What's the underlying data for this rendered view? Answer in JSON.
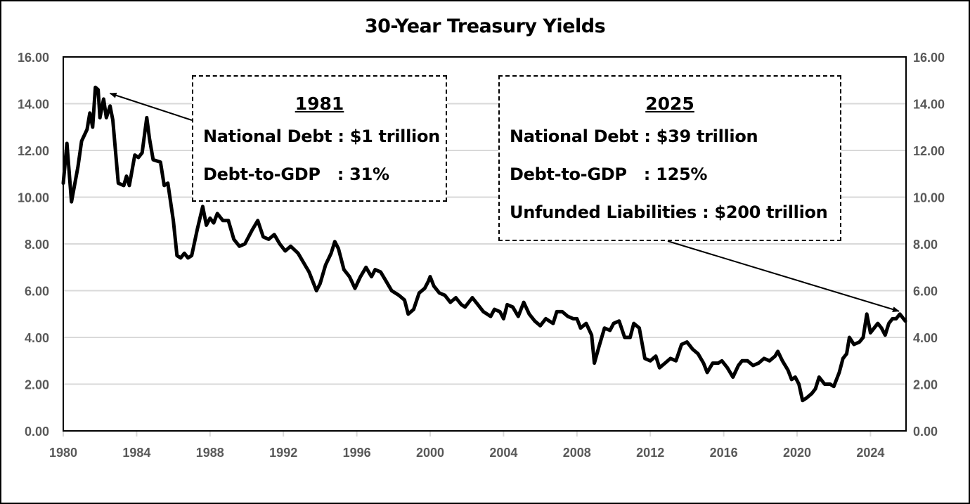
{
  "chart_data": {
    "type": "line",
    "title": "30-Year Treasury Yields",
    "xlabel": "",
    "ylabel": "",
    "xlim": [
      1980,
      2025.9
    ],
    "ylim": [
      0,
      16
    ],
    "grid": true,
    "legend": "none",
    "x_ticks": [
      "1980",
      "1984",
      "1988",
      "1992",
      "1996",
      "2000",
      "2004",
      "2008",
      "2012",
      "2016",
      "2020",
      "2024"
    ],
    "x_tick_values": [
      1980,
      1984,
      1988,
      1992,
      1996,
      2000,
      2004,
      2008,
      2012,
      2016,
      2020,
      2024
    ],
    "y_ticks_left": [
      "0.00",
      "2.00",
      "4.00",
      "6.00",
      "8.00",
      "10.00",
      "12.00",
      "14.00",
      "16.00"
    ],
    "y_ticks_right": [
      "0.00",
      "2.00",
      "4.00",
      "6.00",
      "8.00",
      "10.00",
      "12.00",
      "14.00",
      "16.00"
    ],
    "y_tick_values": [
      0,
      2,
      4,
      6,
      8,
      10,
      12,
      14,
      16
    ],
    "series": [
      {
        "name": "30-Year Treasury Yield",
        "color": "#000000",
        "x": [
          1980.0,
          1980.2,
          1980.45,
          1980.8,
          1981.0,
          1981.3,
          1981.45,
          1981.6,
          1981.75,
          1981.9,
          1982.0,
          1982.2,
          1982.35,
          1982.55,
          1982.7,
          1983.0,
          1983.3,
          1983.45,
          1983.6,
          1983.9,
          1984.1,
          1984.3,
          1984.55,
          1984.7,
          1984.9,
          1985.3,
          1985.5,
          1985.7,
          1986.0,
          1986.2,
          1986.4,
          1986.6,
          1986.8,
          1987.0,
          1987.3,
          1987.6,
          1987.8,
          1988.0,
          1988.2,
          1988.4,
          1988.7,
          1989.0,
          1989.3,
          1989.6,
          1989.9,
          1990.3,
          1990.6,
          1990.9,
          1991.2,
          1991.5,
          1991.8,
          1992.1,
          1992.4,
          1992.8,
          1993.1,
          1993.4,
          1993.8,
          1994.0,
          1994.3,
          1994.6,
          1994.8,
          1995.0,
          1995.3,
          1995.6,
          1995.9,
          1996.2,
          1996.5,
          1996.8,
          1997.0,
          1997.3,
          1997.6,
          1997.9,
          1998.3,
          1998.6,
          1998.8,
          1999.1,
          1999.4,
          1999.7,
          1999.9,
          2000.0,
          2000.2,
          2000.5,
          2000.8,
          2001.1,
          2001.4,
          2001.7,
          2001.9,
          2002.3,
          2002.6,
          2002.9,
          2003.3,
          2003.5,
          2003.8,
          2004.0,
          2004.2,
          2004.5,
          2004.8,
          2005.1,
          2005.4,
          2005.7,
          2006.0,
          2006.3,
          2006.7,
          2006.9,
          2007.2,
          2007.5,
          2007.8,
          2008.0,
          2008.2,
          2008.5,
          2008.8,
          2008.95,
          2009.2,
          2009.5,
          2009.8,
          2010.0,
          2010.3,
          2010.6,
          2010.9,
          2011.1,
          2011.4,
          2011.7,
          2012.0,
          2012.3,
          2012.5,
          2012.8,
          2013.1,
          2013.4,
          2013.7,
          2014.0,
          2014.3,
          2014.6,
          2014.9,
          2015.1,
          2015.4,
          2015.7,
          2015.9,
          2016.2,
          2016.5,
          2016.8,
          2017.0,
          2017.3,
          2017.6,
          2017.9,
          2018.2,
          2018.5,
          2018.8,
          2018.95,
          2019.2,
          2019.5,
          2019.7,
          2019.9,
          2020.1,
          2020.3,
          2020.5,
          2020.8,
          2021.0,
          2021.2,
          2021.5,
          2021.8,
          2022.0,
          2022.3,
          2022.5,
          2022.7,
          2022.85,
          2023.1,
          2023.4,
          2023.6,
          2023.8,
          2024.0,
          2024.2,
          2024.4,
          2024.6,
          2024.8,
          2025.0,
          2025.2,
          2025.4,
          2025.6,
          2025.9
        ],
        "values": [
          10.6,
          12.3,
          9.8,
          11.3,
          12.4,
          12.9,
          13.6,
          13.0,
          14.7,
          14.6,
          13.4,
          14.2,
          13.4,
          13.9,
          13.3,
          10.6,
          10.5,
          10.9,
          10.5,
          11.8,
          11.7,
          11.9,
          13.4,
          12.5,
          11.6,
          11.5,
          10.5,
          10.6,
          9.0,
          7.5,
          7.4,
          7.6,
          7.4,
          7.5,
          8.6,
          9.6,
          8.8,
          9.1,
          8.9,
          9.3,
          9.0,
          9.0,
          8.2,
          7.9,
          8.0,
          8.6,
          9.0,
          8.3,
          8.2,
          8.4,
          8.0,
          7.7,
          7.9,
          7.6,
          7.2,
          6.8,
          6.0,
          6.3,
          7.1,
          7.6,
          8.1,
          7.8,
          6.9,
          6.6,
          6.1,
          6.6,
          7.0,
          6.6,
          6.9,
          6.8,
          6.4,
          6.0,
          5.8,
          5.6,
          5.0,
          5.2,
          5.9,
          6.1,
          6.4,
          6.6,
          6.2,
          5.9,
          5.8,
          5.5,
          5.7,
          5.4,
          5.3,
          5.7,
          5.4,
          5.1,
          4.9,
          5.2,
          5.1,
          4.8,
          5.4,
          5.3,
          4.9,
          5.5,
          5.0,
          4.7,
          4.5,
          4.8,
          4.6,
          5.1,
          5.1,
          4.9,
          4.8,
          4.8,
          4.4,
          4.6,
          4.1,
          2.9,
          3.6,
          4.4,
          4.3,
          4.6,
          4.7,
          4.0,
          4.0,
          4.6,
          4.4,
          3.1,
          3.0,
          3.2,
          2.7,
          2.9,
          3.1,
          3.0,
          3.7,
          3.8,
          3.5,
          3.3,
          2.9,
          2.5,
          2.9,
          2.9,
          3.0,
          2.7,
          2.3,
          2.8,
          3.0,
          3.0,
          2.8,
          2.9,
          3.1,
          3.0,
          3.2,
          3.4,
          3.0,
          2.6,
          2.2,
          2.3,
          2.0,
          1.3,
          1.4,
          1.6,
          1.8,
          2.3,
          2.0,
          2.0,
          1.9,
          2.5,
          3.1,
          3.3,
          4.0,
          3.7,
          3.8,
          4.0,
          5.0,
          4.2,
          4.4,
          4.6,
          4.4,
          4.1,
          4.6,
          4.8,
          4.8,
          5.0,
          4.7
        ]
      }
    ],
    "annotations": [
      {
        "year_label": "1981",
        "lines": [
          "National Debt : $1 trillion",
          "Debt-to-GDP   : 31%"
        ],
        "arrow_target": {
          "x": 1982.4,
          "y": 14.5
        }
      },
      {
        "year_label": "2025",
        "lines": [
          "National Debt : $39 trillion",
          "Debt-to-GDP   : 125%",
          "Unfunded Liabilities : $200 trillion"
        ],
        "arrow_target": {
          "x": 2025.4,
          "y": 5.0
        }
      }
    ]
  }
}
